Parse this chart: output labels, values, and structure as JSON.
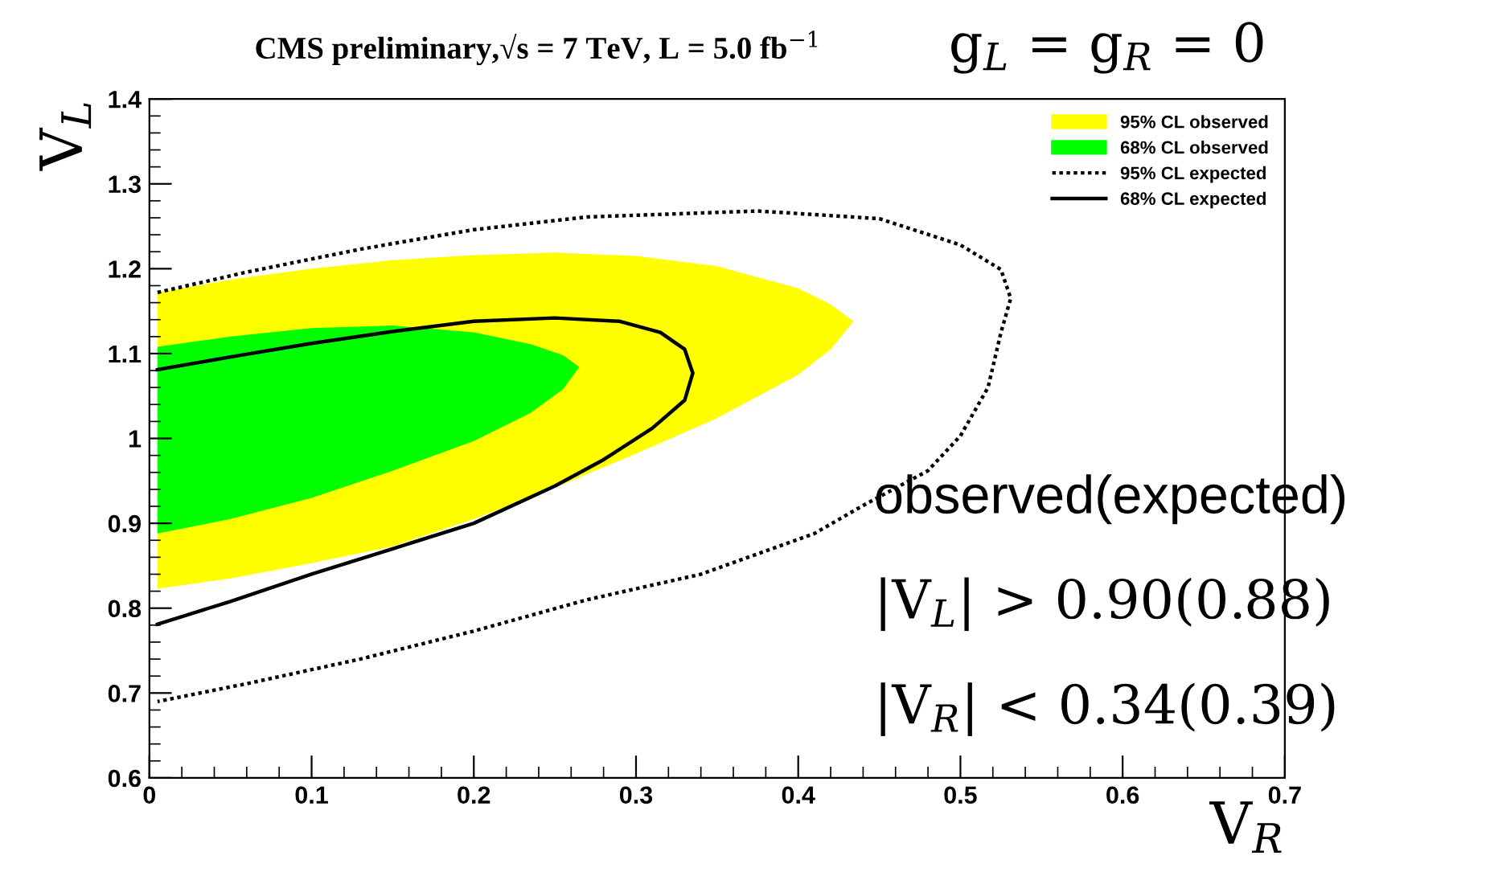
{
  "chart_data": {
    "type": "area",
    "title": "CMS preliminary,√s = 7 TeV, L = 5.0 fb$^{−1}$",
    "subtitle": "g$_{L}$ = g$_{R}$ = 0",
    "xlabel": "V$_{R}$",
    "ylabel": "V$_{L}$",
    "xlim": [
      0,
      0.7
    ],
    "ylim": [
      0.6,
      1.4
    ],
    "xticks": [
      0,
      0.1,
      0.2,
      0.3,
      0.4,
      0.5,
      0.6,
      0.7
    ],
    "yticks": [
      0.6,
      0.7,
      0.8,
      0.9,
      1,
      1.1,
      1.2,
      1.3,
      1.4
    ],
    "grid": false,
    "legend": "top right",
    "series": [
      {
        "name": "95% CL observed",
        "type": "area",
        "color": "#ffff00",
        "x": [
          0.005,
          0.05,
          0.1,
          0.15,
          0.2,
          0.25,
          0.3,
          0.35,
          0.4,
          0.42,
          0.434
        ],
        "values": [
          null,
          null,
          null,
          null,
          null,
          null,
          null,
          null,
          null,
          null,
          null
        ],
        "upper": [
          1.172,
          1.187,
          1.2,
          1.21,
          1.216,
          1.219,
          1.215,
          1.203,
          1.177,
          1.158,
          1.138
        ],
        "lower": [
          0.823,
          0.835,
          0.853,
          0.873,
          0.905,
          0.942,
          0.982,
          1.024,
          1.075,
          1.105,
          1.138
        ]
      },
      {
        "name": "68% CL observed",
        "type": "area",
        "color": "#00ff00",
        "x": [
          0.005,
          0.05,
          0.1,
          0.15,
          0.2,
          0.235,
          0.255,
          0.265
        ],
        "values": [
          null,
          null,
          null,
          null,
          null,
          null,
          null,
          null
        ],
        "upper": [
          1.108,
          1.12,
          1.13,
          1.133,
          1.125,
          1.111,
          1.098,
          1.084
        ],
        "lower": [
          0.888,
          0.905,
          0.93,
          0.962,
          0.997,
          1.03,
          1.058,
          1.084
        ]
      },
      {
        "name": "95% CL expected",
        "type": "line",
        "color": "#000000",
        "line_style": "dotted",
        "x": [
          0.005,
          0.06,
          0.13,
          0.2,
          0.27,
          0.375,
          0.45,
          0.5,
          0.525,
          0.531,
          0.525,
          0.517,
          0.5,
          0.48,
          0.44,
          0.41,
          0.34,
          0.27,
          0.2,
          0.13,
          0.06,
          0.005
        ],
        "values": [
          1.172,
          1.196,
          1.223,
          1.246,
          1.261,
          1.268,
          1.259,
          1.228,
          1.199,
          1.165,
          1.125,
          1.06,
          1.003,
          0.962,
          0.921,
          0.888,
          0.84,
          0.81,
          0.773,
          0.74,
          0.711,
          0.69
        ]
      },
      {
        "name": "68% CL expected",
        "type": "line",
        "color": "#000000",
        "line_style": "solid",
        "x": [
          0.005,
          0.05,
          0.1,
          0.15,
          0.2,
          0.25,
          0.29,
          0.315,
          0.33,
          0.335,
          0.33,
          0.31,
          0.28,
          0.25,
          0.2,
          0.15,
          0.1,
          0.05,
          0.005
        ],
        "values": [
          1.081,
          1.096,
          1.112,
          1.126,
          1.138,
          1.142,
          1.138,
          1.125,
          1.105,
          1.077,
          1.045,
          1.012,
          0.975,
          0.944,
          0.9,
          0.87,
          0.84,
          0.808,
          0.781
        ]
      }
    ],
    "annotations": [
      "observed(expected)",
      "|V$_{L}$| > 0.90(0.88)",
      "|V$_{R}$| < 0.34(0.39)"
    ]
  }
}
